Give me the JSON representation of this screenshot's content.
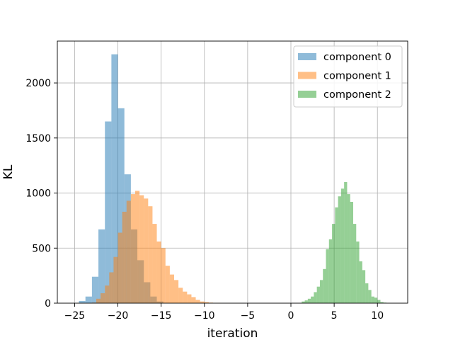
{
  "chart_data": {
    "type": "histogram",
    "xlabel": "iteration",
    "ylabel": "KL",
    "xlim": [
      -27,
      13.5
    ],
    "ylim": [
      0,
      2380
    ],
    "xticks": [
      -25,
      -20,
      -15,
      -10,
      -5,
      0,
      5,
      10
    ],
    "xtick_labels": [
      "−25",
      "−20",
      "−15",
      "−10",
      "−5",
      "0",
      "5",
      "10"
    ],
    "yticks": [
      0,
      500,
      1000,
      1500,
      2000
    ],
    "ytick_labels": [
      "0",
      "500",
      "1000",
      "1500",
      "2000"
    ],
    "grid": true,
    "legend_position": "top-right",
    "series": [
      {
        "name": "component 0",
        "color": "#1f77b4",
        "alpha": 0.5,
        "bins": [
          {
            "x0": -24.5,
            "x1": -23.75,
            "count": 20
          },
          {
            "x0": -23.75,
            "x1": -23.0,
            "count": 60
          },
          {
            "x0": -23.0,
            "x1": -22.25,
            "count": 240
          },
          {
            "x0": -22.25,
            "x1": -21.5,
            "count": 670
          },
          {
            "x0": -21.5,
            "x1": -20.75,
            "count": 1650
          },
          {
            "x0": -20.75,
            "x1": -20.0,
            "count": 2260
          },
          {
            "x0": -20.0,
            "x1": -19.25,
            "count": 1770
          },
          {
            "x0": -19.25,
            "x1": -18.5,
            "count": 1170
          },
          {
            "x0": -18.5,
            "x1": -17.75,
            "count": 670
          },
          {
            "x0": -17.75,
            "x1": -17.0,
            "count": 390
          },
          {
            "x0": -17.0,
            "x1": -16.25,
            "count": 190
          },
          {
            "x0": -16.25,
            "x1": -15.5,
            "count": 60
          },
          {
            "x0": -15.5,
            "x1": -14.75,
            "count": 15
          }
        ]
      },
      {
        "name": "component 1",
        "color": "#ff7f0e",
        "alpha": 0.5,
        "bins": [
          {
            "x0": -23.0,
            "x1": -22.5,
            "count": 5
          },
          {
            "x0": -22.5,
            "x1": -22.0,
            "count": 40
          },
          {
            "x0": -22.0,
            "x1": -21.5,
            "count": 90
          },
          {
            "x0": -21.5,
            "x1": -21.0,
            "count": 160
          },
          {
            "x0": -21.0,
            "x1": -20.5,
            "count": 280
          },
          {
            "x0": -20.5,
            "x1": -20.0,
            "count": 420
          },
          {
            "x0": -20.0,
            "x1": -19.5,
            "count": 640
          },
          {
            "x0": -19.5,
            "x1": -19.0,
            "count": 830
          },
          {
            "x0": -19.0,
            "x1": -18.5,
            "count": 930
          },
          {
            "x0": -18.5,
            "x1": -18.0,
            "count": 990
          },
          {
            "x0": -18.0,
            "x1": -17.5,
            "count": 1020
          },
          {
            "x0": -17.5,
            "x1": -17.0,
            "count": 980
          },
          {
            "x0": -17.0,
            "x1": -16.5,
            "count": 950
          },
          {
            "x0": -16.5,
            "x1": -16.0,
            "count": 880
          },
          {
            "x0": -16.0,
            "x1": -15.5,
            "count": 720
          },
          {
            "x0": -15.5,
            "x1": -15.0,
            "count": 560
          },
          {
            "x0": -15.0,
            "x1": -14.5,
            "count": 500
          },
          {
            "x0": -14.5,
            "x1": -14.0,
            "count": 340
          },
          {
            "x0": -14.0,
            "x1": -13.5,
            "count": 260
          },
          {
            "x0": -13.5,
            "x1": -13.0,
            "count": 210
          },
          {
            "x0": -13.0,
            "x1": -12.5,
            "count": 140
          },
          {
            "x0": -12.5,
            "x1": -12.0,
            "count": 105
          },
          {
            "x0": -12.0,
            "x1": -11.5,
            "count": 80
          },
          {
            "x0": -11.5,
            "x1": -11.0,
            "count": 55
          },
          {
            "x0": -11.0,
            "x1": -10.5,
            "count": 30
          },
          {
            "x0": -10.5,
            "x1": -10.0,
            "count": 15
          },
          {
            "x0": -10.0,
            "x1": -9.5,
            "count": 10
          },
          {
            "x0": -9.5,
            "x1": -9.0,
            "count": 5
          },
          {
            "x0": -9.0,
            "x1": -8.5,
            "count": 3
          },
          {
            "x0": -8.5,
            "x1": -8.0,
            "count": 2
          }
        ]
      },
      {
        "name": "component 2",
        "color": "#2ca02c",
        "alpha": 0.5,
        "bins": [
          {
            "x0": 1.25,
            "x1": 1.6,
            "count": 15
          },
          {
            "x0": 1.6,
            "x1": 1.95,
            "count": 25
          },
          {
            "x0": 1.95,
            "x1": 2.3,
            "count": 40
          },
          {
            "x0": 2.3,
            "x1": 2.65,
            "count": 60
          },
          {
            "x0": 2.65,
            "x1": 3.0,
            "count": 100
          },
          {
            "x0": 3.0,
            "x1": 3.35,
            "count": 150
          },
          {
            "x0": 3.35,
            "x1": 3.7,
            "count": 210
          },
          {
            "x0": 3.7,
            "x1": 4.05,
            "count": 310
          },
          {
            "x0": 4.05,
            "x1": 4.4,
            "count": 490
          },
          {
            "x0": 4.4,
            "x1": 4.75,
            "count": 580
          },
          {
            "x0": 4.75,
            "x1": 5.1,
            "count": 720
          },
          {
            "x0": 5.1,
            "x1": 5.45,
            "count": 870
          },
          {
            "x0": 5.45,
            "x1": 5.8,
            "count": 970
          },
          {
            "x0": 5.8,
            "x1": 6.15,
            "count": 1040
          },
          {
            "x0": 6.15,
            "x1": 6.5,
            "count": 1100
          },
          {
            "x0": 6.5,
            "x1": 6.85,
            "count": 990
          },
          {
            "x0": 6.85,
            "x1": 7.2,
            "count": 920
          },
          {
            "x0": 7.2,
            "x1": 7.55,
            "count": 720
          },
          {
            "x0": 7.55,
            "x1": 7.9,
            "count": 560
          },
          {
            "x0": 7.9,
            "x1": 8.25,
            "count": 380
          },
          {
            "x0": 8.25,
            "x1": 8.6,
            "count": 300
          },
          {
            "x0": 8.6,
            "x1": 8.95,
            "count": 180
          },
          {
            "x0": 8.95,
            "x1": 9.3,
            "count": 120
          },
          {
            "x0": 9.3,
            "x1": 9.65,
            "count": 60
          },
          {
            "x0": 9.65,
            "x1": 10.0,
            "count": 50
          },
          {
            "x0": 10.0,
            "x1": 10.35,
            "count": 30
          },
          {
            "x0": 10.35,
            "x1": 10.7,
            "count": 10
          },
          {
            "x0": 10.7,
            "x1": 11.05,
            "count": 5
          }
        ]
      }
    ]
  }
}
